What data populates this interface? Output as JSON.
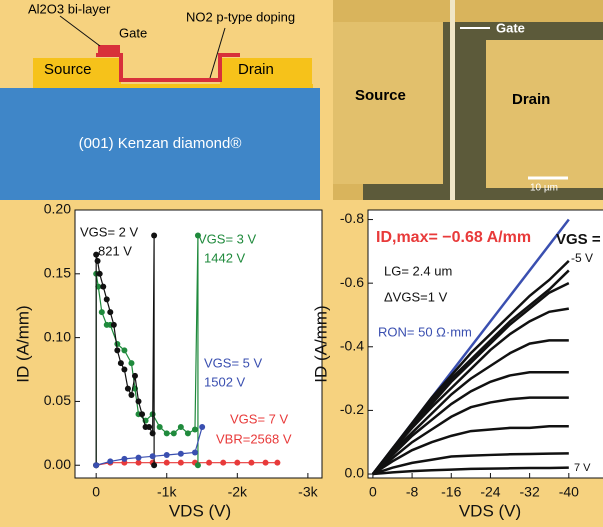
{
  "diagram": {
    "labels": [
      "Al2O3 bi-layer",
      "Gate",
      "NO2 p-type doping",
      "Source",
      "Drain",
      "(001) Kenzan diamond®"
    ]
  },
  "micrograph": {
    "labels": [
      "Gate",
      "Source",
      "Drain",
      "10 µm"
    ]
  },
  "chart_data": [
    {
      "type": "line",
      "markers": true,
      "xlabel": "VDS (V)",
      "ylabel": "ID (A/mm)",
      "xlim": [
        300,
        -3200
      ],
      "ylim": [
        -0.01,
        0.2
      ],
      "xticks": [
        {
          "value": 0,
          "label": "0"
        },
        {
          "value": -1000,
          "label": "-1k"
        },
        {
          "value": -2000,
          "label": "-2k"
        },
        {
          "value": -3000,
          "label": "-3k"
        }
      ],
      "yticks": [
        {
          "value": 0,
          "label": "0.00"
        },
        0.05,
        {
          "value": 0.1,
          "label": "0.10"
        },
        0.15,
        {
          "value": 0.2,
          "label": "0.20"
        }
      ],
      "annotations": [
        "VGS= 2 V",
        "821 V",
        "VGS= 3 V",
        "1442 V",
        "VGS= 5 V",
        "1502 V",
        "VGS= 7 V",
        "VBR=2568 V"
      ],
      "series": [
        {
          "color": "#e83a3a",
          "x": [
            0,
            -200,
            -400,
            -600,
            -800,
            -1000,
            -1200,
            -1400,
            -1600,
            -1800,
            -2000,
            -2200,
            -2400,
            -2568
          ],
          "values": [
            0,
            0.002,
            0.002,
            0.002,
            0.002,
            0.002,
            0.002,
            0.002,
            0.002,
            0.002,
            0.002,
            0.002,
            0.002,
            0.002
          ]
        },
        {
          "color": "#1f8a3c",
          "x": [
            0,
            0,
            -30,
            -80,
            -150,
            -200,
            -300,
            -400,
            -500,
            -550,
            -600,
            -700,
            -800,
            -900,
            -1000,
            -1100,
            -1200,
            -1300,
            -1400,
            -1442,
            -1442
          ],
          "values": [
            0,
            0.15,
            0.14,
            0.12,
            0.11,
            0.11,
            0.095,
            0.09,
            0.08,
            0.06,
            0.04,
            0.035,
            0.04,
            0.03,
            0.025,
            0.025,
            0.03,
            0.025,
            0.028,
            0.18,
            0
          ]
        },
        {
          "color": "#111111",
          "x": [
            0,
            0,
            -20,
            -50,
            -100,
            -150,
            -200,
            -250,
            -300,
            -350,
            -400,
            -450,
            -500,
            -550,
            -600,
            -650,
            -700,
            -750,
            -800,
            -821,
            -821
          ],
          "values": [
            0,
            0.165,
            0.16,
            0.15,
            0.14,
            0.13,
            0.12,
            0.11,
            0.09,
            0.08,
            0.075,
            0.06,
            0.055,
            0.07,
            0.05,
            0.04,
            0.03,
            0.03,
            0.025,
            0.18,
            0
          ]
        },
        {
          "color": "#3a4fb0",
          "x": [
            0,
            -200,
            -400,
            -600,
            -800,
            -1000,
            -1200,
            -1400,
            -1502
          ],
          "values": [
            0,
            0.003,
            0.005,
            0.006,
            0.007,
            0.008,
            0.009,
            0.01,
            0.03
          ]
        }
      ]
    },
    {
      "type": "line",
      "markers": false,
      "xlabel": "VDS (V)",
      "ylabel": "ID (A/mm)",
      "xlim": [
        1,
        -48
      ],
      "ylim": [
        0.0125,
        -0.83
      ],
      "xticks": [
        0,
        -8,
        -16,
        -24,
        -32,
        -40
      ],
      "yticks": [
        {
          "value": 0,
          "label": "0.0"
        },
        -0.2,
        -0.4,
        -0.6,
        -0.8
      ],
      "annotations": [
        "ID,max= −0.68 A/mm",
        "VGS =",
        "LG= 2.4 um",
        "ΔVGS=1 V",
        "RON= 50 Ω·mm",
        "-5 V",
        "7 V"
      ],
      "series": [
        {
          "color": "#3a4fb0",
          "x": [
            0,
            -40
          ],
          "values": [
            0,
            -0.8
          ]
        },
        {
          "color": "#111111",
          "x": [
            0,
            -4,
            -8,
            -12,
            -16,
            -20,
            -24,
            -28,
            -32,
            -36,
            -40
          ],
          "values": [
            0,
            -0.08,
            -0.16,
            -0.24,
            -0.31,
            -0.38,
            -0.44,
            -0.5,
            -0.56,
            -0.61,
            -0.67
          ]
        },
        {
          "color": "#111111",
          "x": [
            0,
            -4,
            -8,
            -12,
            -16,
            -20,
            -24,
            -28,
            -32,
            -36,
            -40
          ],
          "values": [
            0,
            -0.08,
            -0.155,
            -0.23,
            -0.3,
            -0.36,
            -0.42,
            -0.48,
            -0.53,
            -0.58,
            -0.64
          ]
        },
        {
          "color": "#111111",
          "x": [
            0,
            -4,
            -8,
            -12,
            -16,
            -20,
            -24,
            -28,
            -32,
            -36,
            -40
          ],
          "values": [
            0,
            -0.078,
            -0.15,
            -0.22,
            -0.29,
            -0.35,
            -0.41,
            -0.47,
            -0.52,
            -0.57,
            -0.6
          ]
        },
        {
          "color": "#111111",
          "x": [
            0,
            -4,
            -8,
            -12,
            -16,
            -20,
            -24,
            -28,
            -32,
            -36,
            -40
          ],
          "values": [
            0,
            -0.075,
            -0.145,
            -0.21,
            -0.27,
            -0.33,
            -0.39,
            -0.44,
            -0.48,
            -0.51,
            -0.52
          ]
        },
        {
          "color": "#111111",
          "x": [
            0,
            -4,
            -8,
            -12,
            -16,
            -20,
            -24,
            -28,
            -32,
            -36,
            -40
          ],
          "values": [
            0,
            -0.07,
            -0.13,
            -0.19,
            -0.25,
            -0.3,
            -0.34,
            -0.38,
            -0.41,
            -0.42,
            -0.42
          ]
        },
        {
          "color": "#111111",
          "x": [
            0,
            -4,
            -8,
            -12,
            -16,
            -20,
            -24,
            -28,
            -32,
            -36,
            -40
          ],
          "values": [
            0,
            -0.06,
            -0.12,
            -0.17,
            -0.22,
            -0.26,
            -0.29,
            -0.31,
            -0.32,
            -0.32,
            -0.32
          ]
        },
        {
          "color": "#111111",
          "x": [
            0,
            -4,
            -8,
            -12,
            -16,
            -20,
            -24,
            -28,
            -32,
            -36,
            -40
          ],
          "values": [
            0,
            -0.05,
            -0.1,
            -0.14,
            -0.18,
            -0.21,
            -0.225,
            -0.235,
            -0.24,
            -0.24,
            -0.24
          ]
        },
        {
          "color": "#111111",
          "x": [
            0,
            -4,
            -8,
            -12,
            -16,
            -20,
            -24,
            -28,
            -32,
            -36,
            -40
          ],
          "values": [
            0,
            -0.04,
            -0.075,
            -0.1,
            -0.12,
            -0.135,
            -0.14,
            -0.145,
            -0.145,
            -0.15,
            -0.15
          ]
        },
        {
          "color": "#111111",
          "x": [
            0,
            -4,
            -8,
            -12,
            -16,
            -20,
            -24,
            -28,
            -32,
            -36,
            -40
          ],
          "values": [
            0,
            -0.02,
            -0.035,
            -0.045,
            -0.055,
            -0.058,
            -0.06,
            -0.062,
            -0.063,
            -0.064,
            -0.065
          ]
        },
        {
          "color": "#111111",
          "x": [
            0,
            -4,
            -8,
            -12,
            -16,
            -20,
            -24,
            -28,
            -32,
            -36,
            -40
          ],
          "values": [
            0,
            -0.005,
            -0.009,
            -0.012,
            -0.014,
            -0.016,
            -0.017,
            -0.018,
            -0.019,
            -0.019,
            -0.02
          ]
        }
      ]
    }
  ]
}
